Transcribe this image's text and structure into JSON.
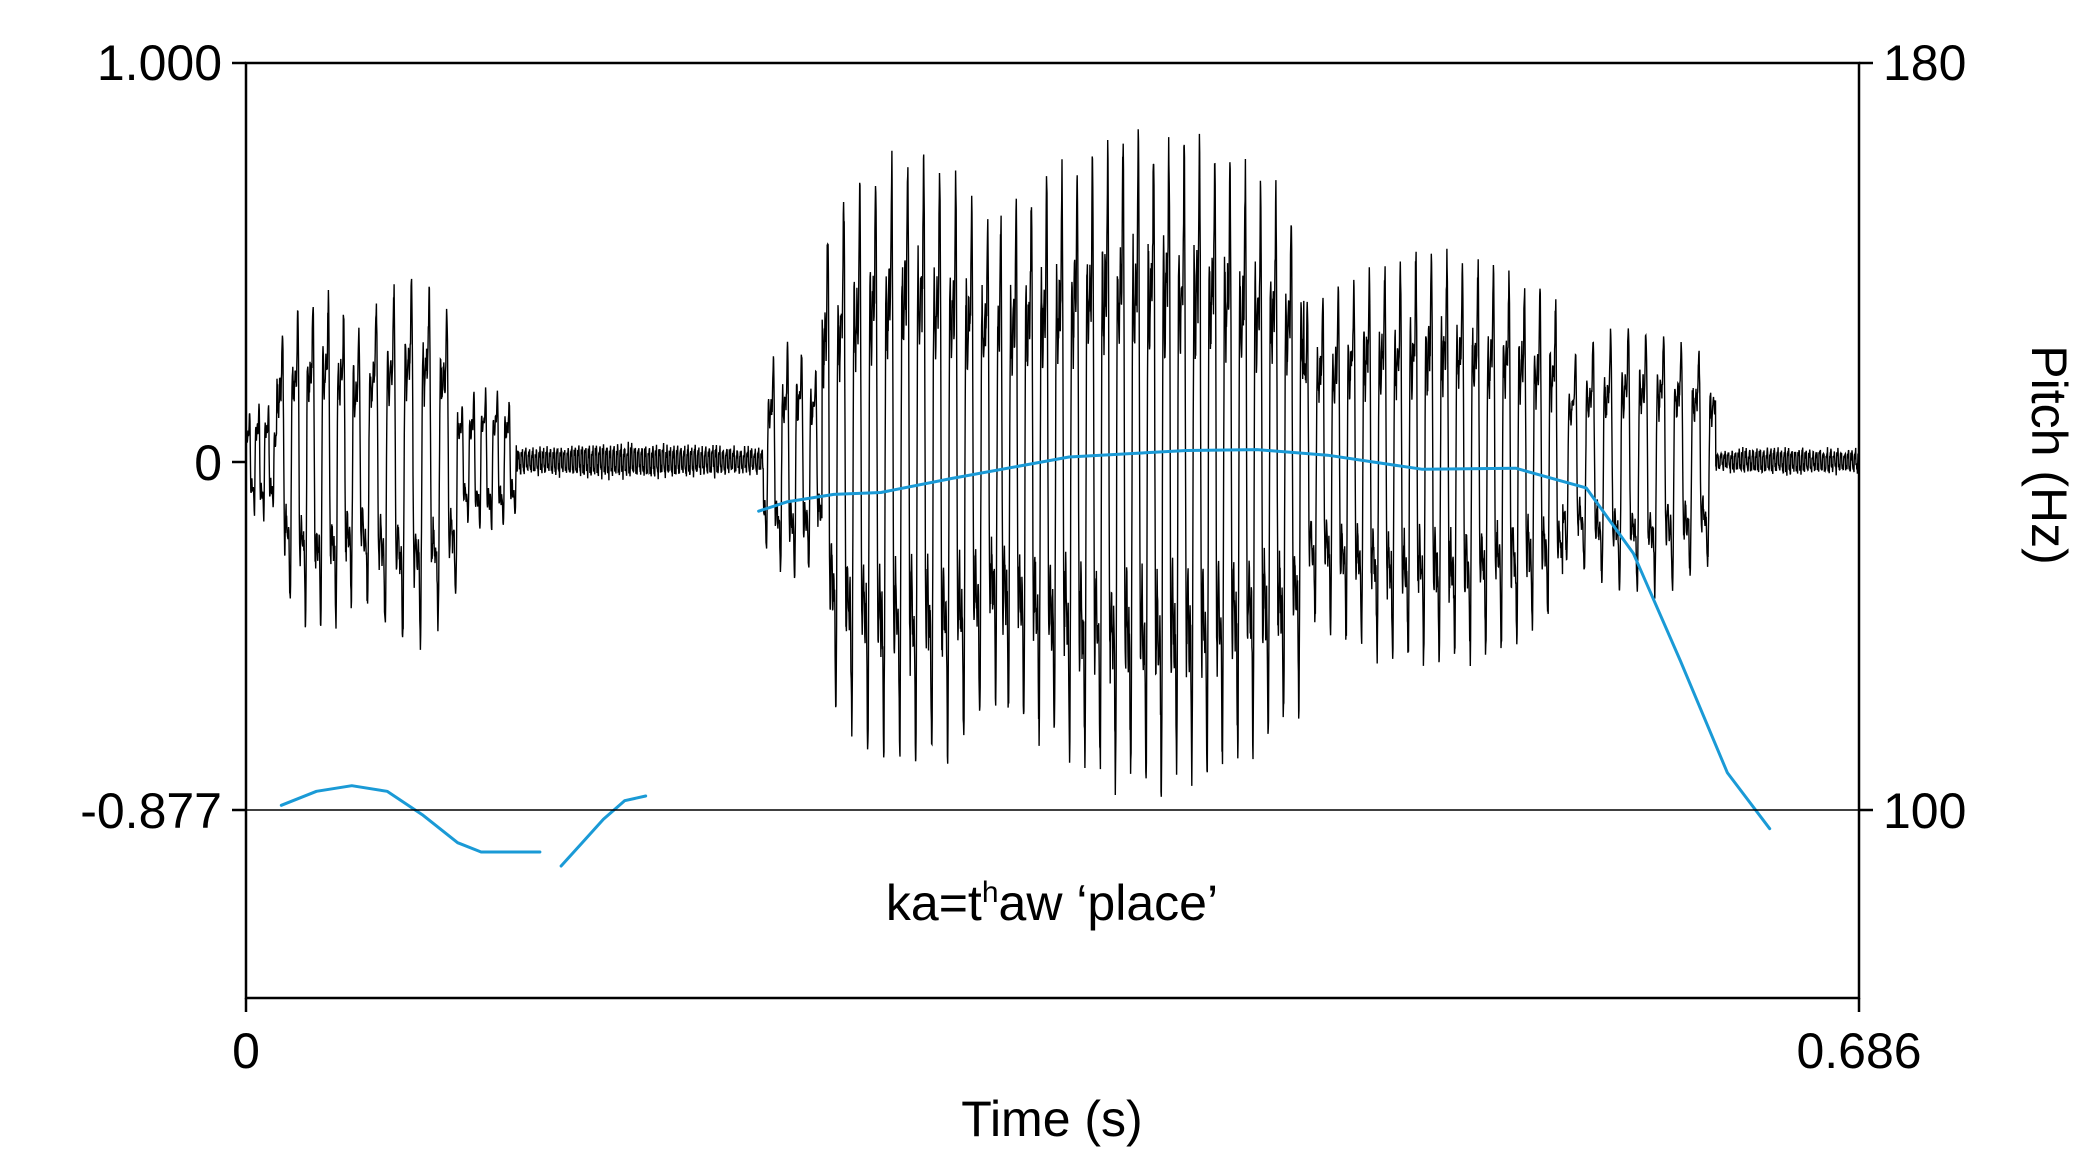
{
  "chart_data": {
    "type": "line",
    "title": "",
    "xlabel": "Time (s)",
    "ylabel": "",
    "ylabel_right": "Pitch (Hz)",
    "xlim": [
      0,
      0.686
    ],
    "ylim": [
      -0.877,
      1.0
    ],
    "ylim_right": [
      100,
      180
    ],
    "x_tick_labels": [
      "0",
      "0.686"
    ],
    "y_tick_labels_left": [
      "1.000",
      "0",
      "-0.877"
    ],
    "y_tick_labels_right": [
      "180",
      "100"
    ],
    "grid": false,
    "annotation": {
      "base": "ka=t",
      "superscript": "h",
      "rest": "aw ‘place’"
    },
    "series": [
      {
        "kind": "waveform",
        "color": "#000000",
        "segments": [
          {
            "t0": 0.0,
            "t1": 0.013,
            "amp": 0.18,
            "period": 0.004
          },
          {
            "t0": 0.013,
            "t1": 0.05,
            "amp": 0.5,
            "period": 0.0065
          },
          {
            "t0": 0.05,
            "t1": 0.09,
            "amp": 0.55,
            "period": 0.0075
          },
          {
            "t0": 0.09,
            "t1": 0.115,
            "amp": 0.22,
            "period": 0.005
          },
          {
            "t0": 0.115,
            "t1": 0.22,
            "amp": 0.05,
            "period": 0.0015
          },
          {
            "t0": 0.22,
            "t1": 0.245,
            "amp": 0.35,
            "period": 0.006
          },
          {
            "t0": 0.245,
            "t1": 0.32,
            "amp": 0.92,
            "period": 0.0068
          },
          {
            "t0": 0.32,
            "t1": 0.45,
            "amp": 0.98,
            "period": 0.0065
          },
          {
            "t0": 0.45,
            "t1": 0.56,
            "amp": 0.62,
            "period": 0.0066
          },
          {
            "t0": 0.56,
            "t1": 0.625,
            "amp": 0.4,
            "period": 0.0075
          },
          {
            "t0": 0.625,
            "t1": 0.686,
            "amp": 0.04,
            "period": 0.0015
          }
        ]
      },
      {
        "kind": "pitch",
        "axis": "right",
        "color": "#1a9ad6",
        "segments": [
          {
            "t": [
              0.015,
              0.03,
              0.045,
              0.06,
              0.075,
              0.09,
              0.1,
              0.11,
              0.125
            ],
            "hz": [
              100.5,
              102.0,
              102.6,
              102.0,
              99.5,
              96.5,
              95.5,
              95.5,
              95.5
            ]
          },
          {
            "t": [
              0.134,
              0.143,
              0.152,
              0.161,
              0.17
            ],
            "hz": [
              94.0,
              96.5,
              99.0,
              101.0,
              101.5
            ]
          },
          {
            "t": [
              0.218,
              0.23,
              0.25,
              0.27,
              0.3,
              0.35,
              0.4,
              0.43,
              0.46,
              0.5,
              0.54,
              0.57,
              0.59,
              0.61,
              0.63,
              0.648
            ],
            "hz": [
              132.0,
              133.0,
              133.8,
              134.0,
              135.5,
              137.8,
              138.5,
              138.6,
              138.0,
              136.5,
              136.6,
              134.5,
              127.5,
              116.0,
              104.0,
              98.0
            ]
          }
        ]
      }
    ]
  }
}
